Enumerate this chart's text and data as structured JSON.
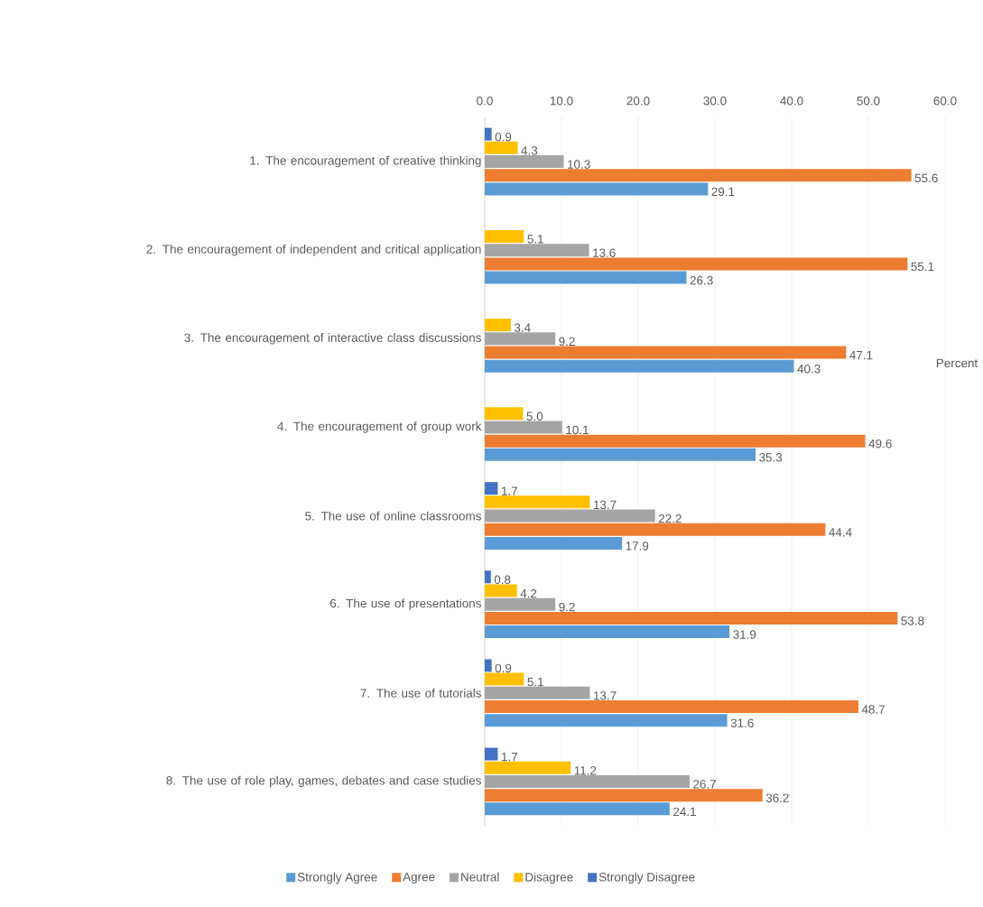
{
  "chart_data": {
    "type": "bar",
    "orientation": "horizontal",
    "xlabel": "Percent",
    "categories": [
      "1. The encouragement of creative thinking",
      "2. The encouragement of independent and critical application",
      "3. The encouragement of interactive class discussions",
      "4. The encouragement of group work",
      "5. The use of online classrooms",
      "6. The use of presentations",
      "7. The use of tutorials",
      "8. The use of role play, games, debates and case studies"
    ],
    "series": [
      {
        "name": "Strongly Agree",
        "color": "#5b9bd5",
        "values": [
          29.1,
          26.3,
          40.3,
          35.3,
          17.9,
          31.9,
          31.6,
          24.1
        ],
        "value_labels": [
          "29.1",
          "26.3",
          "40.3",
          "35.3",
          "17.9",
          "31.9",
          "31.6",
          "24.1"
        ]
      },
      {
        "name": "Agree",
        "color": "#ed7d31",
        "values": [
          55.6,
          55.1,
          47.1,
          49.6,
          44.4,
          53.8,
          48.7,
          36.2
        ],
        "value_labels": [
          "55.6",
          "55.1",
          "47.1",
          "49.6",
          "44.4",
          "53.8",
          "48.7",
          "36.2"
        ]
      },
      {
        "name": "Neutral",
        "color": "#a5a5a5",
        "values": [
          10.3,
          13.6,
          9.2,
          10.1,
          22.2,
          9.2,
          13.7,
          26.7
        ],
        "value_labels": [
          "10.3",
          "13.6",
          "9.2",
          "10.1",
          "22.2",
          "9.2",
          "13.7",
          "26.7"
        ]
      },
      {
        "name": "Disagree",
        "color": "#ffc000",
        "values": [
          4.3,
          5.1,
          3.4,
          5.0,
          13.7,
          4.2,
          5.1,
          11.2
        ],
        "value_labels": [
          "4.3",
          "5.1",
          "3.4",
          "5.0",
          "13.7",
          "4.2",
          "5.1",
          "11.2"
        ]
      },
      {
        "name": "Strongly Disagree",
        "color": "#4472c4",
        "values": [
          0.9,
          null,
          null,
          null,
          1.7,
          0.8,
          0.9,
          1.7
        ],
        "value_labels": [
          "0.9",
          null,
          null,
          null,
          "1.7",
          "0.8",
          "0.9",
          "1.7"
        ]
      }
    ],
    "xlim": [
      0,
      60
    ],
    "xticks": [
      {
        "value": 0,
        "label": "0.0"
      },
      {
        "value": 10,
        "label": "10.0"
      },
      {
        "value": 20,
        "label": "20.0"
      },
      {
        "value": 30,
        "label": "30.0"
      },
      {
        "value": 40,
        "label": "40.0"
      },
      {
        "value": 50,
        "label": "50.0"
      },
      {
        "value": 60,
        "label": "60.0"
      }
    ],
    "grid": "x",
    "legend": "bottom"
  }
}
